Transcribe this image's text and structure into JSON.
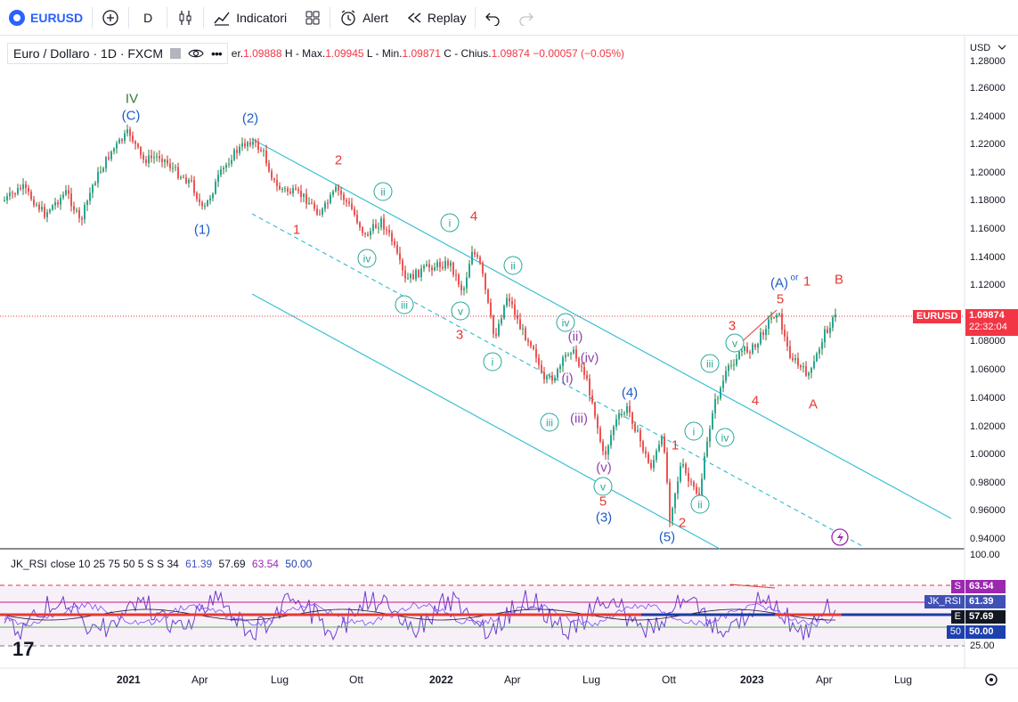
{
  "toolbar": {
    "symbol": "EURUSD",
    "interval": "D",
    "indicators_label": "Indicatori",
    "alert_label": "Alert",
    "replay_label": "Replay"
  },
  "legend": {
    "title": "Euro / Dollaro · 1D · FXCM",
    "ohlc_prefix": "er.",
    "open": "1.09888",
    "high_label": "H - Max.",
    "high": "1.09945",
    "low_label": "L - Min.",
    "low": "1.09871",
    "close_label": "C - Chius.",
    "close": "1.09874",
    "change": "−0.00057 (−0.05%)"
  },
  "price_axis": {
    "currency": "USD",
    "ticks": [
      "1.28000",
      "1.26000",
      "1.24000",
      "1.22000",
      "1.20000",
      "1.18000",
      "1.16000",
      "1.14000",
      "1.12000",
      "1.10000",
      "1.08000",
      "1.06000",
      "1.04000",
      "1.02000",
      "1.00000",
      "0.98000",
      "0.96000",
      "0.94000"
    ],
    "last_tag_symbol": "EURUSD",
    "last_price": "1.09874",
    "countdown": "22:32:04"
  },
  "rsi": {
    "legend_name": "JK_RSI",
    "legend_params": "close 10 25 75 50 5 S S 34",
    "v1": "61.39",
    "v2": "57.69",
    "v3": "63.54",
    "v4": "50.00",
    "axis_ticks": [
      "100.00",
      "25.00"
    ],
    "tags": [
      {
        "letter": "S",
        "value": "63.54",
        "color": "#9c27b0"
      },
      {
        "letter": "JK_RSI",
        "value": "61.39",
        "color": "#3f51b5"
      },
      {
        "letter": "E",
        "value": "57.69",
        "color": "#131722"
      },
      {
        "letter": "50",
        "value": "50.00",
        "color": "#1e40af"
      }
    ]
  },
  "time_axis": [
    "2021",
    "Apr",
    "Lug",
    "Ott",
    "2022",
    "Apr",
    "Lug",
    "Ott",
    "2023",
    "Apr",
    "Lug"
  ],
  "wave_labels": [
    {
      "text": "IV",
      "color": "#2e7d32"
    },
    {
      "text": "(C)",
      "color": "#1e5bc6"
    },
    {
      "text": "(2)",
      "color": "#1e5bc6"
    },
    {
      "text": "(1)",
      "color": "#1e5bc6"
    },
    {
      "text": "2",
      "color": "#e53935"
    },
    {
      "text": "1",
      "color": "#e53935"
    },
    {
      "text": "4",
      "color": "#e53935"
    },
    {
      "text": "3",
      "color": "#e53935"
    },
    {
      "text": "(4)",
      "color": "#1e5bc6"
    },
    {
      "text": "(3)",
      "color": "#1e5bc6"
    },
    {
      "text": "5",
      "color": "#e53935"
    },
    {
      "text": "(5)",
      "color": "#1e5bc6"
    },
    {
      "text": "2",
      "color": "#e53935"
    },
    {
      "text": "1",
      "color": "#e53935"
    },
    {
      "text": "(A)",
      "color": "#1e5bc6"
    },
    {
      "text": "or",
      "color": "#1e5bc6"
    },
    {
      "text": "1",
      "color": "#e53935"
    },
    {
      "text": "5",
      "color": "#e53935"
    },
    {
      "text": "3",
      "color": "#e53935"
    },
    {
      "text": "4",
      "color": "#e53935"
    },
    {
      "text": "B",
      "color": "#e53935"
    },
    {
      "text": "A",
      "color": "#e53935"
    },
    {
      "text": "(ii)",
      "color": "#8e44ad"
    },
    {
      "text": "(iv)",
      "color": "#8e44ad"
    },
    {
      "text": "(i)",
      "color": "#8e44ad"
    },
    {
      "text": "(iii)",
      "color": "#8e44ad"
    },
    {
      "text": "(v)",
      "color": "#8e44ad"
    }
  ],
  "circled_labels": [
    "ii",
    "i",
    "iii",
    "iv",
    "v",
    "ii",
    "i",
    "iv",
    "iii",
    "v",
    "iii",
    "i",
    "iv",
    "ii",
    "v"
  ]
}
